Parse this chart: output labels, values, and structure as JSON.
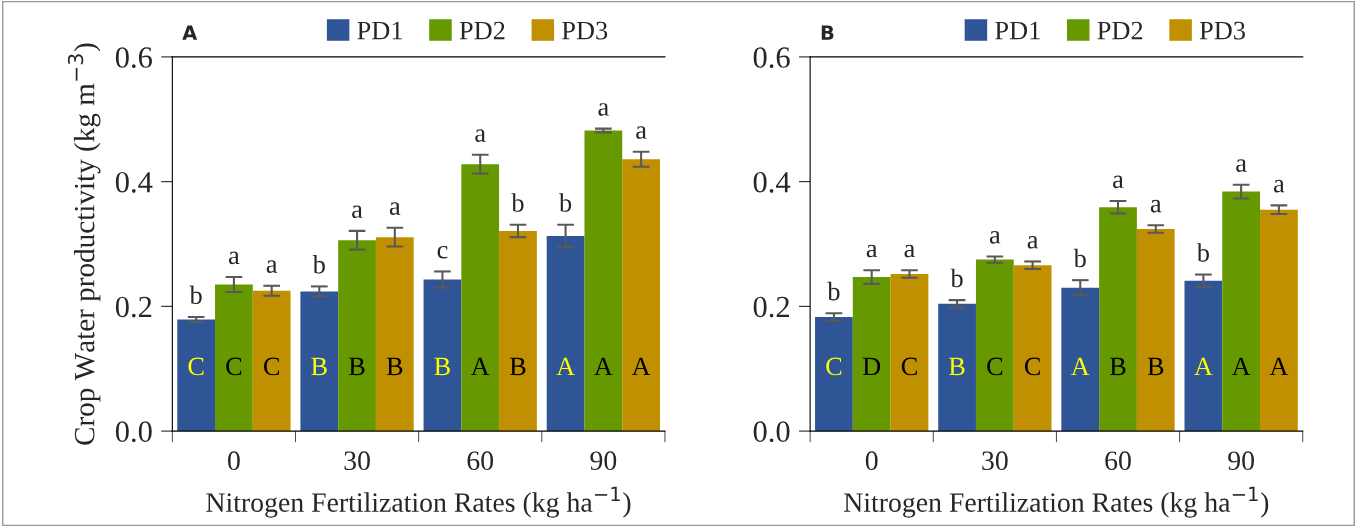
{
  "chart_data": [
    {
      "type": "bar",
      "title": "A",
      "xlabel": "Nitrogen Fertilization Rates (kg ha$^{−1}$)",
      "ylabel": "Crop Water productivity (kg m$^{−3}$)",
      "categories": [
        "0",
        "30",
        "60",
        "90"
      ],
      "ylim": [
        0,
        0.6
      ],
      "yticks": [
        {
          "value": 0,
          "label": "0.0"
        },
        0.2,
        0.4,
        0.6
      ],
      "legend": "top",
      "series": [
        {
          "name": "PD1",
          "color": "#2f5597",
          "values": [
            0.179,
            0.224,
            0.243,
            0.313
          ],
          "errors": [
            0.004,
            0.008,
            0.013,
            0.018
          ],
          "value_labels": [
            "b",
            "b",
            "c",
            "b"
          ]
        },
        {
          "name": "PD2",
          "color": "#669900",
          "values": [
            0.235,
            0.306,
            0.428,
            0.482
          ],
          "errors": [
            0.012,
            0.015,
            0.015,
            0.003
          ],
          "value_labels": [
            "a",
            "a",
            "a",
            "a"
          ]
        },
        {
          "name": "PD3",
          "color": "#c09000",
          "values": [
            0.225,
            0.311,
            0.321,
            0.436
          ],
          "errors": [
            0.008,
            0.015,
            0.01,
            0.012
          ],
          "value_labels": [
            "a",
            "a",
            "b",
            "a"
          ]
        }
      ],
      "annotations": [
        "C",
        "C",
        "C",
        "B",
        "B",
        "B",
        "B",
        "A",
        "B",
        "A",
        "A",
        "A"
      ]
    },
    {
      "type": "bar",
      "title": "B",
      "xlabel": "Nitrogen Fertilization Rates (kg ha$^{−1}$)",
      "categories": [
        "0",
        "30",
        "60",
        "90"
      ],
      "ylim": [
        0,
        0.6
      ],
      "yticks": [
        {
          "value": 0,
          "label": "0.0"
        },
        0.2,
        0.4,
        0.6
      ],
      "legend": "top",
      "series": [
        {
          "name": "PD1",
          "color": "#2f5597",
          "values": [
            0.183,
            0.204,
            0.23,
            0.241
          ],
          "errors": [
            0.006,
            0.006,
            0.012,
            0.01
          ],
          "value_labels": [
            "b",
            "b",
            "b",
            "b"
          ]
        },
        {
          "name": "PD2",
          "color": "#669900",
          "values": [
            0.247,
            0.275,
            0.359,
            0.384
          ],
          "errors": [
            0.011,
            0.005,
            0.01,
            0.011
          ],
          "value_labels": [
            "a",
            "a",
            "a",
            "a"
          ]
        },
        {
          "name": "PD3",
          "color": "#c09000",
          "values": [
            0.252,
            0.266,
            0.324,
            0.355
          ],
          "errors": [
            0.006,
            0.006,
            0.006,
            0.007
          ],
          "value_labels": [
            "a",
            "a",
            "a",
            "a"
          ]
        }
      ],
      "annotations": [
        "C",
        "D",
        "C",
        "B",
        "C",
        "C",
        "A",
        "B",
        "B",
        "A",
        "A",
        "A"
      ]
    }
  ]
}
